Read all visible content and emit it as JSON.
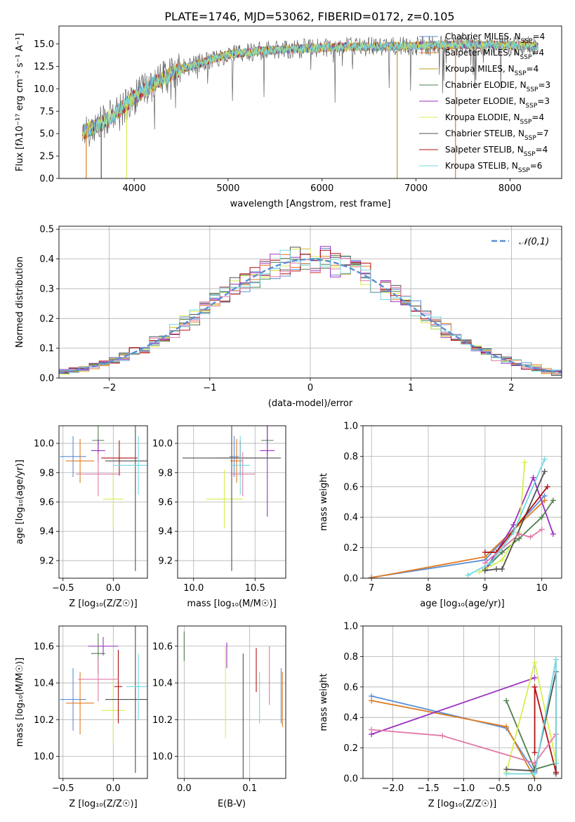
{
  "title": "PLATE=1746, MJD=53062, FIBERID=0172, z=0.105",
  "colors": {
    "Chabrier MILES": "#5b8ed6",
    "Salpeter MILES": "#e07b20",
    "Kroupa MILES": "#b8a020",
    "Chabrier ELODIE": "#4f7f4f",
    "Salpeter ELODIE": "#9b30c0",
    "Kroupa ELODIE": "#d8ee50",
    "Chabrier STELIB": "#505050",
    "Salpeter STELIB": "#b01010",
    "Kroupa STELIB": "#70d8e0",
    "pink": "#e07aa8"
  },
  "chart_data": [
    {
      "id": "spectrum",
      "type": "line",
      "xlabel": "wavelength [Angstrom, rest frame]",
      "ylabel": "Flux [fλ10⁻¹⁷ erg cm⁻² s⁻¹ A⁻¹]",
      "xlim": [
        3200,
        8550
      ],
      "ylim": [
        0,
        17
      ],
      "xticks": [
        4000,
        5000,
        6000,
        7000,
        8000
      ],
      "yticks": [
        0.0,
        2.5,
        5.0,
        7.5,
        10.0,
        12.5,
        15.0
      ],
      "ytick_labels": [
        "0.0",
        "2.5",
        "5.0",
        "7.5",
        "10.0",
        "12.5",
        "15.0"
      ],
      "legend": "upper right",
      "legend_entries": [
        {
          "label": "Chabrier MILES, N",
          "sub": "SSP",
          "tail": "=4",
          "color": "#5b8ed6"
        },
        {
          "label": "Salpeter MILES, N",
          "sub": "SSP",
          "tail": "=4",
          "color": "#e07b20"
        },
        {
          "label": "Kroupa MILES, N",
          "sub": "SSP",
          "tail": "=4",
          "color": "#b8a020"
        },
        {
          "label": "Chabrier ELODIE, N",
          "sub": "SSP",
          "tail": "=3",
          "color": "#4f7f4f"
        },
        {
          "label": "Salpeter ELODIE, N",
          "sub": "SSP",
          "tail": "=3",
          "color": "#9b30c0"
        },
        {
          "label": "Kroupa ELODIE, N",
          "sub": "SSP",
          "tail": "=4",
          "color": "#d8ee50"
        },
        {
          "label": "Chabrier STELIB, N",
          "sub": "SSP",
          "tail": "=7",
          "color": "#505050"
        },
        {
          "label": "Salpeter STELIB, N",
          "sub": "SSP",
          "tail": "=4",
          "color": "#b01010"
        },
        {
          "label": "Kroupa STELIB, N",
          "sub": "SSP",
          "tail": "=6",
          "color": "#70d8e0"
        }
      ],
      "continuum": {
        "x": [
          3450,
          3600,
          3800,
          4000,
          4200,
          4500,
          4800,
          5000,
          5300,
          5600,
          6000,
          6300,
          6600,
          7000,
          7400,
          7800,
          8200,
          8300
        ],
        "y": [
          5.2,
          5.8,
          7.2,
          9.0,
          10.6,
          12.2,
          13.2,
          13.8,
          14.2,
          14.4,
          14.6,
          14.7,
          14.7,
          14.8,
          14.9,
          14.9,
          14.8,
          14.7
        ]
      },
      "dropouts": [
        {
          "x": 3490,
          "color": "#e07b20"
        },
        {
          "x": 3650,
          "color": "#505050"
        },
        {
          "x": 3920,
          "color": "#d8ee50"
        },
        {
          "x": 6800,
          "color": "#b8a020"
        },
        {
          "x": 7420,
          "color": "#e07b20"
        }
      ]
    },
    {
      "id": "residuals",
      "type": "step",
      "xlabel": "(data-model)/error",
      "ylabel": "Normed distribution",
      "xlim": [
        -2.5,
        2.5
      ],
      "ylim": [
        0,
        0.51
      ],
      "xticks": [
        -2,
        -1,
        0,
        1,
        2
      ],
      "xtick_labels": [
        "−2",
        "−1",
        "0",
        "1",
        "2"
      ],
      "yticks": [
        0.0,
        0.1,
        0.2,
        0.3,
        0.4,
        0.5
      ],
      "ytick_labels": [
        "0.0",
        "0.1",
        "0.2",
        "0.3",
        "0.4",
        "0.5"
      ],
      "bin_width": 0.1,
      "bin_start": -2.5,
      "gaussian_label": "𝒩(0,1)",
      "gaussian_color": "#5b8ed6",
      "legend": "upper right"
    },
    {
      "id": "age-vs-Z",
      "type": "scatter",
      "xlabel": "Z [log₁₀(Z/Z☉)]",
      "ylabel": "age  [log₁₀(age/yr)]",
      "xlim": [
        -0.54,
        0.34
      ],
      "ylim": [
        9.08,
        10.12
      ],
      "xticks": [
        -0.5,
        0.0
      ],
      "xtick_labels": [
        "−0.5",
        "0.0"
      ],
      "yticks": [
        9.2,
        9.4,
        9.6,
        9.8,
        10.0
      ],
      "ytick_labels": [
        "9.2",
        "9.4",
        "9.6",
        "9.8",
        "10.0"
      ],
      "points": [
        {
          "x": -0.4,
          "y": 9.91,
          "xerr": 0.13,
          "yerr": 0.14,
          "color": "#5b8ed6"
        },
        {
          "x": -0.33,
          "y": 9.88,
          "xerr": 0.14,
          "yerr": 0.15,
          "color": "#e07b20"
        },
        {
          "x": -0.15,
          "y": 10.02,
          "xerr": 0.06,
          "yerr": 0.1,
          "color": "#4f7f4f"
        },
        {
          "x": -0.15,
          "y": 9.95,
          "xerr": 0.07,
          "yerr": 0.08,
          "color": "#9b30c0"
        },
        {
          "x": 0.0,
          "y": 9.62,
          "xerr": 0.1,
          "yerr": 0.2,
          "color": "#d8ee50"
        },
        {
          "x": 0.06,
          "y": 9.9,
          "xerr": 0.18,
          "yerr": 0.12,
          "color": "#b01010"
        },
        {
          "x": 0.22,
          "y": 9.88,
          "xerr": 0.3,
          "yerr": 0.75,
          "color": "#505050"
        },
        {
          "x": -0.15,
          "y": 9.79,
          "xerr": 0.22,
          "yerr": 0.15,
          "color": "#e07aa8"
        },
        {
          "x": 0.25,
          "y": 9.85,
          "xerr": 0.25,
          "yerr": 0.2,
          "color": "#70d8e0"
        }
      ]
    },
    {
      "id": "age-vs-mass",
      "type": "scatter",
      "xlabel": "mass [log₁₀(M/M☉)]",
      "ylabel": "",
      "xlim": [
        9.87,
        10.75
      ],
      "ylim": [
        9.08,
        10.12
      ],
      "xticks": [
        10.0,
        10.5
      ],
      "xtick_labels": [
        "10.0",
        "10.5"
      ],
      "yticks": [
        9.2,
        9.4,
        9.6,
        9.8,
        10.0
      ],
      "ytick_labels": [
        "9.2",
        "9.4",
        "9.6",
        "9.8",
        "10.0"
      ],
      "points": [
        {
          "x": 10.33,
          "y": 9.91,
          "xerr": 0.04,
          "yerr": 0.14,
          "color": "#5b8ed6"
        },
        {
          "x": 10.35,
          "y": 9.88,
          "xerr": 0.05,
          "yerr": 0.15,
          "color": "#e07b20"
        },
        {
          "x": 10.6,
          "y": 10.02,
          "xerr": 0.05,
          "yerr": 0.1,
          "color": "#4f7f4f"
        },
        {
          "x": 10.6,
          "y": 9.95,
          "xerr": 0.06,
          "yerr": 0.45,
          "color": "#9b30c0"
        },
        {
          "x": 10.25,
          "y": 9.62,
          "xerr": 0.15,
          "yerr": 0.2,
          "color": "#d8ee50"
        },
        {
          "x": 10.38,
          "y": 9.9,
          "xerr": 0.2,
          "yerr": 0.12,
          "color": "#b01010"
        },
        {
          "x": 10.31,
          "y": 9.9,
          "xerr": 0.4,
          "yerr": 0.77,
          "color": "#505050"
        },
        {
          "x": 10.4,
          "y": 9.79,
          "xerr": 0.1,
          "yerr": 0.15,
          "color": "#e07aa8"
        },
        {
          "x": 10.38,
          "y": 9.85,
          "xerr": 0.08,
          "yerr": 0.2,
          "color": "#70d8e0"
        }
      ]
    },
    {
      "id": "massweight-vs-age",
      "type": "line",
      "xlabel": "age  [log₁₀(age/yr)]",
      "ylabel": "mass weight",
      "xlim": [
        6.85,
        10.35
      ],
      "ylim": [
        0,
        1.0
      ],
      "xticks": [
        7,
        8,
        9,
        10
      ],
      "xtick_labels": [
        "7",
        "8",
        "9",
        "10"
      ],
      "yticks": [
        0.0,
        0.2,
        0.4,
        0.6,
        0.8,
        1.0
      ],
      "ytick_labels": [
        "0.0",
        "0.2",
        "0.4",
        "0.6",
        "0.8",
        "1.0"
      ],
      "series": [
        {
          "color": "#5b8ed6",
          "x": [
            7.0,
            9.0,
            10.05
          ],
          "y": [
            0.005,
            0.12,
            0.54
          ]
        },
        {
          "color": "#e07b20",
          "x": [
            7.0,
            9.0,
            10.05
          ],
          "y": [
            0.003,
            0.14,
            0.51
          ]
        },
        {
          "color": "#4f7f4f",
          "x": [
            9.0,
            9.3,
            9.6,
            10.0,
            10.2
          ],
          "y": [
            0.06,
            0.17,
            0.26,
            0.4,
            0.51
          ]
        },
        {
          "color": "#9b30c0",
          "x": [
            9.0,
            9.5,
            9.85,
            10.2
          ],
          "y": [
            0.05,
            0.35,
            0.66,
            0.29
          ]
        },
        {
          "color": "#d8ee50",
          "x": [
            8.9,
            9.3,
            9.6,
            9.7
          ],
          "y": [
            0.04,
            0.12,
            0.3,
            0.76
          ]
        },
        {
          "color": "#505050",
          "x": [
            9.0,
            9.2,
            9.3,
            10.05
          ],
          "y": [
            0.05,
            0.06,
            0.06,
            0.7
          ]
        },
        {
          "color": "#b01010",
          "x": [
            9.0,
            9.2,
            10.1
          ],
          "y": [
            0.17,
            0.17,
            0.6
          ]
        },
        {
          "color": "#e07aa8",
          "x": [
            9.0,
            9.6,
            9.8,
            10.0
          ],
          "y": [
            0.1,
            0.29,
            0.27,
            0.32
          ]
        },
        {
          "color": "#70d8e0",
          "x": [
            8.7,
            9.1,
            9.5,
            10.05
          ],
          "y": [
            0.02,
            0.1,
            0.3,
            0.78
          ]
        }
      ]
    },
    {
      "id": "mass-vs-Z",
      "type": "scatter",
      "xlabel": "Z [log₁₀(Z/Z☉)]",
      "ylabel": "mass [log₁₀(M/M☉)]",
      "xlim": [
        -0.54,
        0.34
      ],
      "ylim": [
        9.88,
        10.71
      ],
      "xticks": [
        -0.5,
        0.0
      ],
      "xtick_labels": [
        "−0.5",
        "0.0"
      ],
      "yticks": [
        10.0,
        10.2,
        10.4,
        10.6
      ],
      "ytick_labels": [
        "10.0",
        "10.2",
        "10.4",
        "10.6"
      ],
      "points": [
        {
          "x": -0.4,
          "y": 10.31,
          "xerr": 0.13,
          "yerr": 0.17,
          "color": "#5b8ed6"
        },
        {
          "x": -0.33,
          "y": 10.29,
          "xerr": 0.14,
          "yerr": 0.17,
          "color": "#e07b20"
        },
        {
          "x": -0.15,
          "y": 10.56,
          "xerr": 0.07,
          "yerr": 0.11,
          "color": "#4f7f4f"
        },
        {
          "x": -0.1,
          "y": 10.6,
          "xerr": 0.15,
          "yerr": 0.05,
          "color": "#9b30c0"
        },
        {
          "x": 0.0,
          "y": 10.25,
          "xerr": 0.12,
          "yerr": 0.18,
          "color": "#d8ee50"
        },
        {
          "x": 0.05,
          "y": 10.38,
          "xerr": 0.04,
          "yerr": 0.2,
          "color": "#b01010"
        },
        {
          "x": 0.22,
          "y": 10.31,
          "xerr": 0.3,
          "yerr": 0.4,
          "color": "#505050"
        },
        {
          "x": -0.15,
          "y": 10.42,
          "xerr": 0.2,
          "yerr": 0.12,
          "color": "#e07aa8"
        },
        {
          "x": 0.25,
          "y": 10.38,
          "xerr": 0.12,
          "yerr": 0.18,
          "color": "#70d8e0"
        }
      ]
    },
    {
      "id": "mass-vs-ebv",
      "type": "scatter",
      "xlabel": "E(B-V)",
      "ylabel": "",
      "xlim": [
        -0.01,
        0.155
      ],
      "ylim": [
        9.88,
        10.71
      ],
      "xticks": [
        0.0,
        0.1
      ],
      "xtick_labels": [
        "0.0",
        "0.1"
      ],
      "yticks": [
        10.0,
        10.2,
        10.4,
        10.6
      ],
      "ytick_labels": [
        "10.0",
        "10.2",
        "10.4",
        "10.6"
      ],
      "points": [
        {
          "x": 0.148,
          "y": 10.33,
          "xerr": 0,
          "yerr": 0.15,
          "color": "#5b8ed6"
        },
        {
          "x": 0.15,
          "y": 10.31,
          "xerr": 0,
          "yerr": 0.15,
          "color": "#e07b20"
        },
        {
          "x": 0.0,
          "y": 10.6,
          "xerr": 0,
          "yerr": 0.08,
          "color": "#4f7f4f"
        },
        {
          "x": 0.065,
          "y": 10.55,
          "xerr": 0,
          "yerr": 0.07,
          "color": "#9b30c0"
        },
        {
          "x": 0.063,
          "y": 10.35,
          "xerr": 0,
          "yerr": 0.25,
          "color": "#d8ee50"
        },
        {
          "x": 0.11,
          "y": 10.47,
          "xerr": 0,
          "yerr": 0.12,
          "color": "#b01010"
        },
        {
          "x": 0.09,
          "y": 10.22,
          "xerr": 0,
          "yerr": 0.34,
          "color": "#505050"
        },
        {
          "x": 0.13,
          "y": 10.44,
          "xerr": 0,
          "yerr": 0.16,
          "color": "#e07aa8"
        },
        {
          "x": 0.115,
          "y": 10.32,
          "xerr": 0,
          "yerr": 0.14,
          "color": "#70d8e0"
        }
      ]
    },
    {
      "id": "massweight-vs-Z",
      "type": "line",
      "xlabel": "Z [log₁₀(Z/Z☉)]",
      "ylabel": "mass weight",
      "xlim": [
        -2.42,
        0.38
      ],
      "ylim": [
        0,
        1.0
      ],
      "xticks": [
        -2.0,
        -1.5,
        -1.0,
        -0.5,
        0.0
      ],
      "xtick_labels": [
        "−2.0",
        "−1.5",
        "−1.0",
        "−0.5",
        "0.0"
      ],
      "yticks": [
        0.0,
        0.2,
        0.4,
        0.6,
        0.8,
        1.0
      ],
      "ytick_labels": [
        "0.0",
        "0.2",
        "0.4",
        "0.6",
        "0.8",
        "1.0"
      ],
      "series": [
        {
          "color": "#5b8ed6",
          "x": [
            -2.3,
            -0.4,
            0.0
          ],
          "y": [
            0.54,
            0.33,
            0.04
          ]
        },
        {
          "color": "#e07b20",
          "x": [
            -2.3,
            -0.4,
            0.0
          ],
          "y": [
            0.51,
            0.34,
            0.0
          ]
        },
        {
          "color": "#4f7f4f",
          "x": [
            -0.4,
            0.0,
            0.3
          ],
          "y": [
            0.51,
            0.06,
            0.1
          ]
        },
        {
          "color": "#9b30c0",
          "x": [
            -2.3,
            0.0
          ],
          "y": [
            0.29,
            0.66
          ]
        },
        {
          "color": "#d8ee50",
          "x": [
            -0.4,
            0.0,
            0.3
          ],
          "y": [
            0.04,
            0.76,
            0.12
          ]
        },
        {
          "color": "#505050",
          "x": [
            -0.4,
            0.0,
            0.3,
            0.3
          ],
          "y": [
            0.06,
            0.05,
            0.7,
            0.03
          ]
        },
        {
          "color": "#b01010",
          "x": [
            0.0,
            0.0,
            0.3
          ],
          "y": [
            0.17,
            0.6,
            0.04
          ]
        },
        {
          "color": "#e07aa8",
          "x": [
            -2.3,
            -1.3,
            0.0,
            0.3
          ],
          "y": [
            0.32,
            0.28,
            0.1,
            0.29
          ]
        },
        {
          "color": "#70d8e0",
          "x": [
            -0.4,
            0.0,
            0.3,
            0.3
          ],
          "y": [
            0.03,
            0.03,
            0.78,
            0.1
          ]
        }
      ]
    }
  ]
}
